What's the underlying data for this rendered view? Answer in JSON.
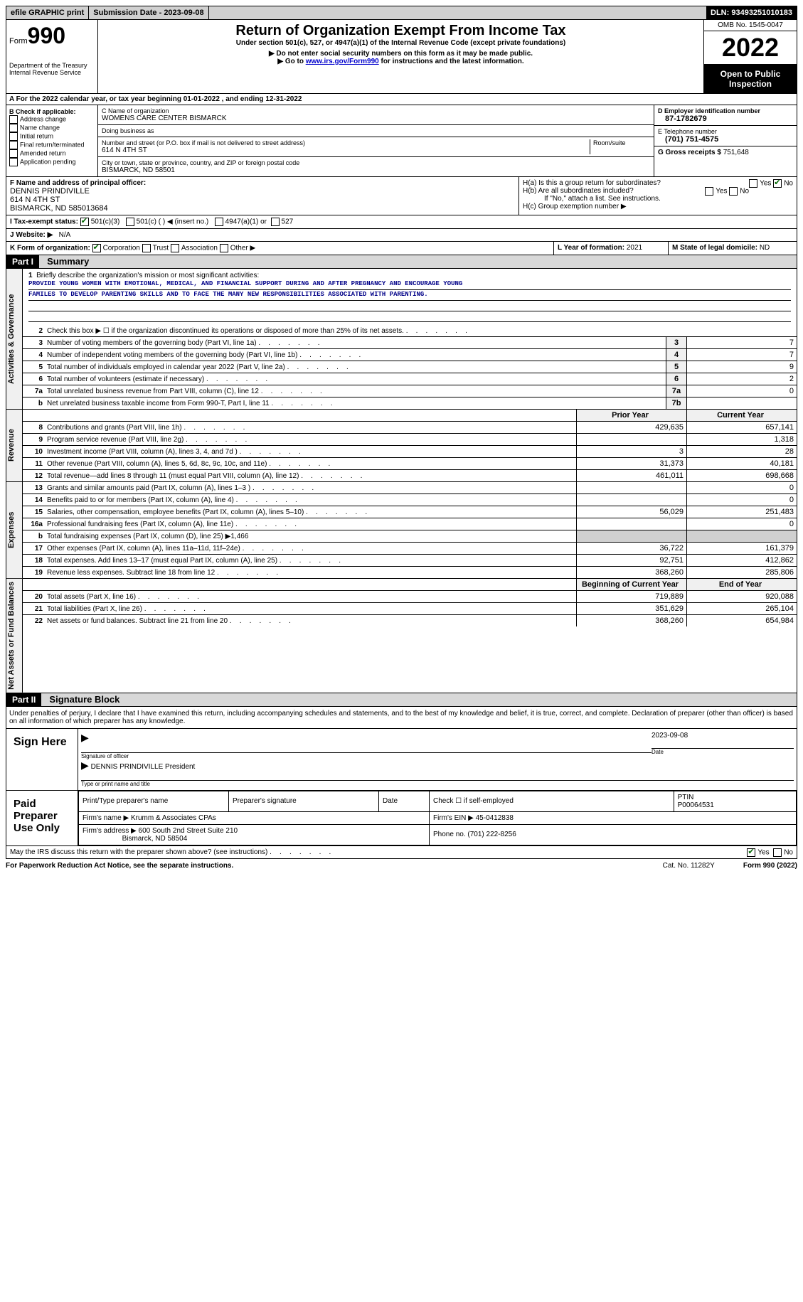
{
  "topbar": {
    "efile": "efile GRAPHIC print",
    "submission": "Submission Date - 2023-09-08",
    "dln": "DLN: 93493251010183"
  },
  "header": {
    "form_word": "Form",
    "form_num": "990",
    "dept": "Department of the Treasury",
    "irs": "Internal Revenue Service",
    "title": "Return of Organization Exempt From Income Tax",
    "sub1": "Under section 501(c), 527, or 4947(a)(1) of the Internal Revenue Code (except private foundations)",
    "sub2": "▶ Do not enter social security numbers on this form as it may be made public.",
    "sub3_pre": "▶ Go to ",
    "sub3_link": "www.irs.gov/Form990",
    "sub3_post": " for instructions and the latest information.",
    "omb": "OMB No. 1545-0047",
    "year": "2022",
    "inspection": "Open to Public Inspection"
  },
  "line_a": "A For the 2022 calendar year, or tax year beginning 01-01-2022    , and ending 12-31-2022",
  "col_b": {
    "title": "B Check if applicable:",
    "opts": [
      "Address change",
      "Name change",
      "Initial return",
      "Final return/terminated",
      "Amended return",
      "Application pending"
    ]
  },
  "col_c": {
    "name_label": "C Name of organization",
    "name": "WOMENS CARE CENTER BISMARCK",
    "dba_label": "Doing business as",
    "dba": "",
    "street_label": "Number and street (or P.O. box if mail is not delivered to street address)",
    "room_label": "Room/suite",
    "street": "614 N 4TH ST",
    "city_label": "City or town, state or province, country, and ZIP or foreign postal code",
    "city": "BISMARCK, ND  58501"
  },
  "col_d": {
    "ein_label": "D Employer identification number",
    "ein": "87-1782679",
    "phone_label": "E Telephone number",
    "phone": "(701) 751-4575",
    "gross_label": "G Gross receipts $",
    "gross": "751,648"
  },
  "row_f": {
    "label": "F Name and address of principal officer:",
    "name": "DENNIS PRINDIVILLE",
    "addr1": "614 N 4TH ST",
    "addr2": "BISMARCK, ND  585013684"
  },
  "row_h": {
    "ha": "H(a)  Is this a group return for subordinates?",
    "hb": "H(b)  Are all subordinates included?",
    "hb_note": "If \"No,\" attach a list. See instructions.",
    "hc": "H(c)  Group exemption number ▶",
    "yes": "Yes",
    "no": "No"
  },
  "row_i": {
    "label": "I  Tax-exempt status:",
    "o1": "501(c)(3)",
    "o2": "501(c) (  ) ◀ (insert no.)",
    "o3": "4947(a)(1) or",
    "o4": "527"
  },
  "row_j": {
    "label": "J  Website: ▶",
    "value": "N/A"
  },
  "row_k": {
    "label": "K Form of organization:",
    "o1": "Corporation",
    "o2": "Trust",
    "o3": "Association",
    "o4": "Other ▶",
    "l_label": "L Year of formation:",
    "l_val": "2021",
    "m_label": "M State of legal domicile:",
    "m_val": "ND"
  },
  "part1": {
    "header": "Part I",
    "title": "Summary"
  },
  "mission": {
    "num": "1",
    "label": "Briefly describe the organization's mission or most significant activities:",
    "text1": "PROVIDE YOUNG WOMEN WITH EMOTIONAL, MEDICAL, AND FINANCIAL SUPPORT DURING AND AFTER PREGNANCY AND ENCOURAGE YOUNG",
    "text2": "FAMILES TO DEVELOP PARENTING SKILLS AND TO FACE THE MANY NEW RESPONSIBILITIES ASSOCIATED WITH PARENTING."
  },
  "vtabs": {
    "gov": "Activities & Governance",
    "rev": "Revenue",
    "exp": "Expenses",
    "net": "Net Assets or Fund Balances"
  },
  "gov_rows": [
    {
      "n": "2",
      "d": "Check this box ▶ ☐ if the organization discontinued its operations or disposed of more than 25% of its net assets."
    },
    {
      "n": "3",
      "d": "Number of voting members of the governing body (Part VI, line 1a)",
      "box": "3",
      "v": "7"
    },
    {
      "n": "4",
      "d": "Number of independent voting members of the governing body (Part VI, line 1b)",
      "box": "4",
      "v": "7"
    },
    {
      "n": "5",
      "d": "Total number of individuals employed in calendar year 2022 (Part V, line 2a)",
      "box": "5",
      "v": "9"
    },
    {
      "n": "6",
      "d": "Total number of volunteers (estimate if necessary)",
      "box": "6",
      "v": "2"
    },
    {
      "n": "7a",
      "d": "Total unrelated business revenue from Part VIII, column (C), line 12",
      "box": "7a",
      "v": "0"
    },
    {
      "n": "b",
      "d": "Net unrelated business taxable income from Form 990-T, Part I, line 11",
      "box": "7b",
      "v": ""
    }
  ],
  "cols": {
    "prior": "Prior Year",
    "current": "Current Year"
  },
  "rev_rows": [
    {
      "n": "8",
      "d": "Contributions and grants (Part VIII, line 1h)",
      "p": "429,635",
      "c": "657,141"
    },
    {
      "n": "9",
      "d": "Program service revenue (Part VIII, line 2g)",
      "p": "",
      "c": "1,318"
    },
    {
      "n": "10",
      "d": "Investment income (Part VIII, column (A), lines 3, 4, and 7d )",
      "p": "3",
      "c": "28"
    },
    {
      "n": "11",
      "d": "Other revenue (Part VIII, column (A), lines 5, 6d, 8c, 9c, 10c, and 11e)",
      "p": "31,373",
      "c": "40,181"
    },
    {
      "n": "12",
      "d": "Total revenue—add lines 8 through 11 (must equal Part VIII, column (A), line 12)",
      "p": "461,011",
      "c": "698,668"
    }
  ],
  "exp_rows": [
    {
      "n": "13",
      "d": "Grants and similar amounts paid (Part IX, column (A), lines 1–3 )",
      "p": "",
      "c": "0"
    },
    {
      "n": "14",
      "d": "Benefits paid to or for members (Part IX, column (A), line 4)",
      "p": "",
      "c": "0"
    },
    {
      "n": "15",
      "d": "Salaries, other compensation, employee benefits (Part IX, column (A), lines 5–10)",
      "p": "56,029",
      "c": "251,483"
    },
    {
      "n": "16a",
      "d": "Professional fundraising fees (Part IX, column (A), line 11e)",
      "p": "",
      "c": "0"
    },
    {
      "n": "b",
      "d": "Total fundraising expenses (Part IX, column (D), line 25) ▶1,466",
      "shaded": true
    },
    {
      "n": "17",
      "d": "Other expenses (Part IX, column (A), lines 11a–11d, 11f–24e)",
      "p": "36,722",
      "c": "161,379"
    },
    {
      "n": "18",
      "d": "Total expenses. Add lines 13–17 (must equal Part IX, column (A), line 25)",
      "p": "92,751",
      "c": "412,862"
    },
    {
      "n": "19",
      "d": "Revenue less expenses. Subtract line 18 from line 12",
      "p": "368,260",
      "c": "285,806"
    }
  ],
  "cols2": {
    "prior": "Beginning of Current Year",
    "current": "End of Year"
  },
  "net_rows": [
    {
      "n": "20",
      "d": "Total assets (Part X, line 16)",
      "p": "719,889",
      "c": "920,088"
    },
    {
      "n": "21",
      "d": "Total liabilities (Part X, line 26)",
      "p": "351,629",
      "c": "265,104"
    },
    {
      "n": "22",
      "d": "Net assets or fund balances. Subtract line 21 from line 20",
      "p": "368,260",
      "c": "654,984"
    }
  ],
  "part2": {
    "header": "Part II",
    "title": "Signature Block"
  },
  "penalty": "Under penalties of perjury, I declare that I have examined this return, including accompanying schedules and statements, and to the best of my knowledge and belief, it is true, correct, and complete. Declaration of preparer (other than officer) is based on all information of which preparer has any knowledge.",
  "sign": {
    "here": "Sign Here",
    "sig_label": "Signature of officer",
    "date": "2023-09-08",
    "date_label": "Date",
    "name": "DENNIS PRINDIVILLE  President",
    "name_label": "Type or print name and title"
  },
  "prep": {
    "label": "Paid Preparer Use Only",
    "h1": "Print/Type preparer's name",
    "h2": "Preparer's signature",
    "h3": "Date",
    "h4_pre": "Check ☐ if self-employed",
    "h5": "PTIN",
    "ptin": "P00064531",
    "firm_label": "Firm's name    ▶",
    "firm": "Krumm & Associates CPAs",
    "ein_label": "Firm's EIN ▶",
    "ein": "45-0412838",
    "addr_label": "Firm's address ▶",
    "addr1": "600 South 2nd Street Suite 210",
    "addr2": "Bismarck, ND  58504",
    "phone_label": "Phone no.",
    "phone": "(701) 222-8256"
  },
  "discuss": {
    "q": "May the IRS discuss this return with the preparer shown above? (see instructions)",
    "yes": "Yes",
    "no": "No"
  },
  "footer": {
    "l": "For Paperwork Reduction Act Notice, see the separate instructions.",
    "c": "Cat. No. 11282Y",
    "r": "Form 990 (2022)"
  }
}
